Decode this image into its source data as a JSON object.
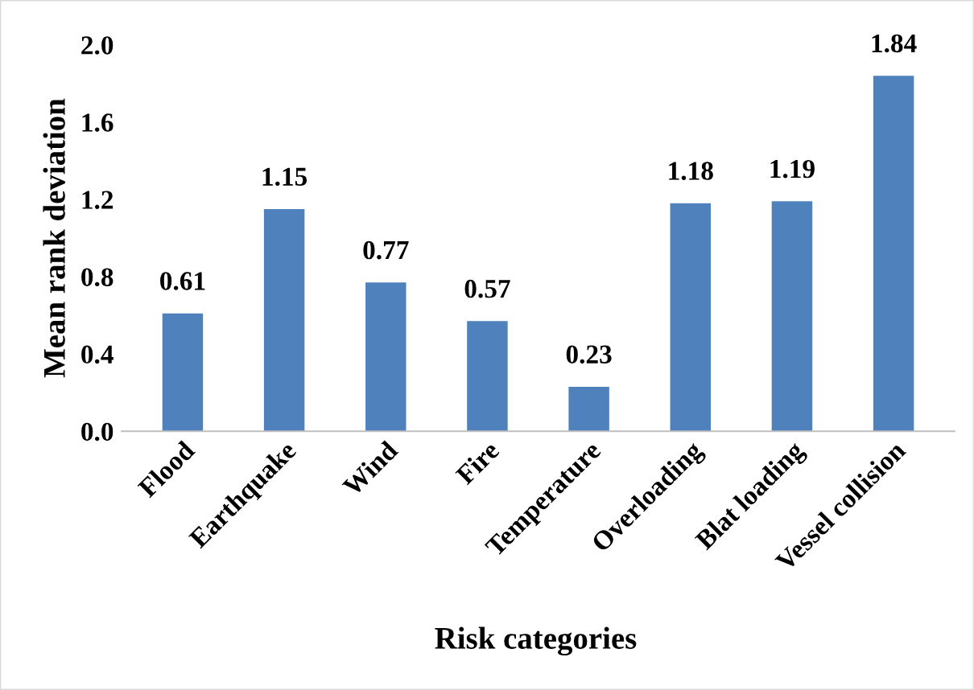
{
  "chart_data": {
    "type": "bar",
    "xlabel": "Risk categories",
    "ylabel": "Mean rank deviation",
    "categories": [
      "Flood",
      "Earthquake",
      "Wind",
      "Fire",
      "Temperature",
      "Overloading",
      "Blat loading",
      "Vessel collision"
    ],
    "values": [
      0.61,
      1.15,
      0.77,
      0.57,
      0.23,
      1.18,
      1.19,
      1.84
    ],
    "color": "#4f81bd",
    "ylim": [
      0,
      2.0
    ],
    "yticks": [
      {
        "value": 0,
        "label": "0.0"
      },
      0.4,
      0.8,
      1.2,
      1.6,
      {
        "value": 2,
        "label": "2.0"
      }
    ],
    "data_labels": true,
    "grid": false,
    "legend": false
  }
}
